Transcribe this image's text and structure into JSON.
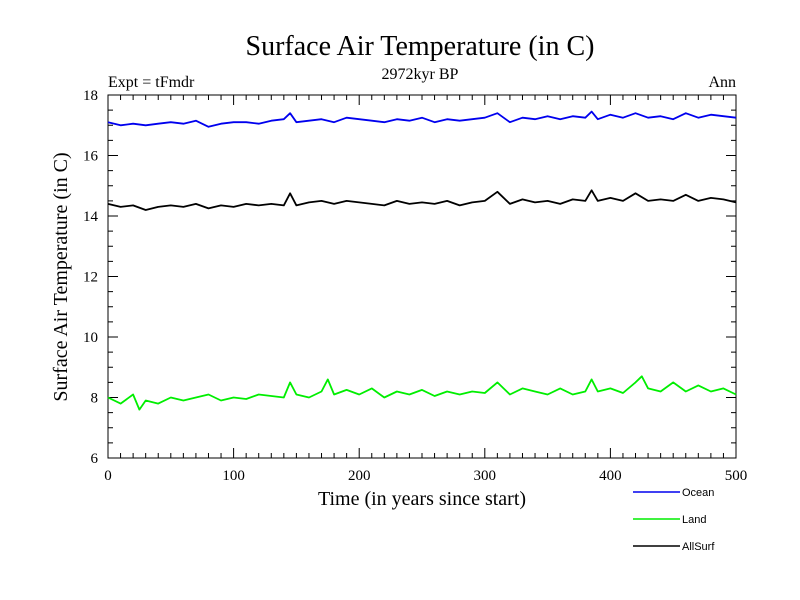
{
  "chart_data": {
    "type": "line",
    "title": "Surface Air Temperature (in C)",
    "subtitle": "2972kyr BP",
    "left_label": "Expt = tFmdr",
    "right_label": "Ann",
    "xlabel": "Time (in years since start)",
    "ylabel": "Surface Air Temperature (in C)",
    "xlim": [
      0,
      500
    ],
    "ylim": [
      6,
      18
    ],
    "xticks": [
      "0",
      "100",
      "200",
      "300",
      "400",
      "500"
    ],
    "yticks": [
      "6",
      "8",
      "10",
      "12",
      "14",
      "16",
      "18"
    ],
    "grid": false,
    "legend_position": "bottom-right",
    "series": [
      {
        "name": "Ocean",
        "color": "#0000ee",
        "x": [
          0,
          10,
          20,
          30,
          40,
          50,
          60,
          70,
          80,
          90,
          100,
          110,
          120,
          130,
          140,
          145,
          150,
          160,
          170,
          180,
          190,
          200,
          210,
          220,
          230,
          240,
          250,
          260,
          270,
          280,
          290,
          300,
          310,
          320,
          330,
          340,
          350,
          360,
          370,
          380,
          385,
          390,
          400,
          410,
          420,
          430,
          440,
          450,
          460,
          470,
          480,
          490,
          500
        ],
        "values": [
          17.1,
          17.0,
          17.05,
          17.0,
          17.05,
          17.1,
          17.05,
          17.15,
          16.95,
          17.05,
          17.1,
          17.1,
          17.05,
          17.15,
          17.2,
          17.4,
          17.1,
          17.15,
          17.2,
          17.1,
          17.25,
          17.2,
          17.15,
          17.1,
          17.2,
          17.15,
          17.25,
          17.1,
          17.2,
          17.15,
          17.2,
          17.25,
          17.4,
          17.1,
          17.25,
          17.2,
          17.3,
          17.2,
          17.3,
          17.25,
          17.45,
          17.2,
          17.35,
          17.25,
          17.4,
          17.25,
          17.3,
          17.2,
          17.4,
          17.25,
          17.35,
          17.3,
          17.25
        ]
      },
      {
        "name": "Land",
        "color": "#00ee00",
        "x": [
          0,
          10,
          20,
          25,
          30,
          40,
          50,
          60,
          70,
          80,
          90,
          100,
          110,
          120,
          130,
          140,
          145,
          150,
          160,
          170,
          175,
          180,
          190,
          200,
          210,
          220,
          230,
          240,
          250,
          260,
          270,
          280,
          290,
          300,
          310,
          320,
          330,
          340,
          350,
          360,
          370,
          380,
          385,
          390,
          400,
          410,
          420,
          425,
          430,
          440,
          450,
          460,
          470,
          480,
          490,
          500
        ],
        "values": [
          8.0,
          7.8,
          8.1,
          7.6,
          7.9,
          7.8,
          8.0,
          7.9,
          8.0,
          8.1,
          7.9,
          8.0,
          7.95,
          8.1,
          8.05,
          8.0,
          8.5,
          8.1,
          8.0,
          8.2,
          8.6,
          8.1,
          8.25,
          8.1,
          8.3,
          8.0,
          8.2,
          8.1,
          8.25,
          8.05,
          8.2,
          8.1,
          8.2,
          8.15,
          8.5,
          8.1,
          8.3,
          8.2,
          8.1,
          8.3,
          8.1,
          8.2,
          8.6,
          8.2,
          8.3,
          8.15,
          8.5,
          8.7,
          8.3,
          8.2,
          8.5,
          8.2,
          8.4,
          8.2,
          8.3,
          8.1
        ]
      },
      {
        "name": "AllSurf",
        "color": "#000000",
        "x": [
          0,
          10,
          20,
          30,
          40,
          50,
          60,
          70,
          80,
          90,
          100,
          110,
          120,
          130,
          140,
          145,
          150,
          160,
          170,
          180,
          190,
          200,
          210,
          220,
          230,
          240,
          250,
          260,
          270,
          280,
          290,
          300,
          310,
          320,
          330,
          340,
          350,
          360,
          370,
          380,
          385,
          390,
          400,
          410,
          420,
          430,
          440,
          450,
          460,
          470,
          480,
          490,
          500
        ],
        "values": [
          14.4,
          14.3,
          14.35,
          14.2,
          14.3,
          14.35,
          14.3,
          14.4,
          14.25,
          14.35,
          14.3,
          14.4,
          14.35,
          14.4,
          14.35,
          14.75,
          14.35,
          14.45,
          14.5,
          14.4,
          14.5,
          14.45,
          14.4,
          14.35,
          14.5,
          14.4,
          14.45,
          14.4,
          14.5,
          14.35,
          14.45,
          14.5,
          14.8,
          14.4,
          14.55,
          14.45,
          14.5,
          14.4,
          14.55,
          14.5,
          14.85,
          14.5,
          14.6,
          14.5,
          14.75,
          14.5,
          14.55,
          14.5,
          14.7,
          14.5,
          14.6,
          14.55,
          14.45
        ]
      }
    ]
  }
}
